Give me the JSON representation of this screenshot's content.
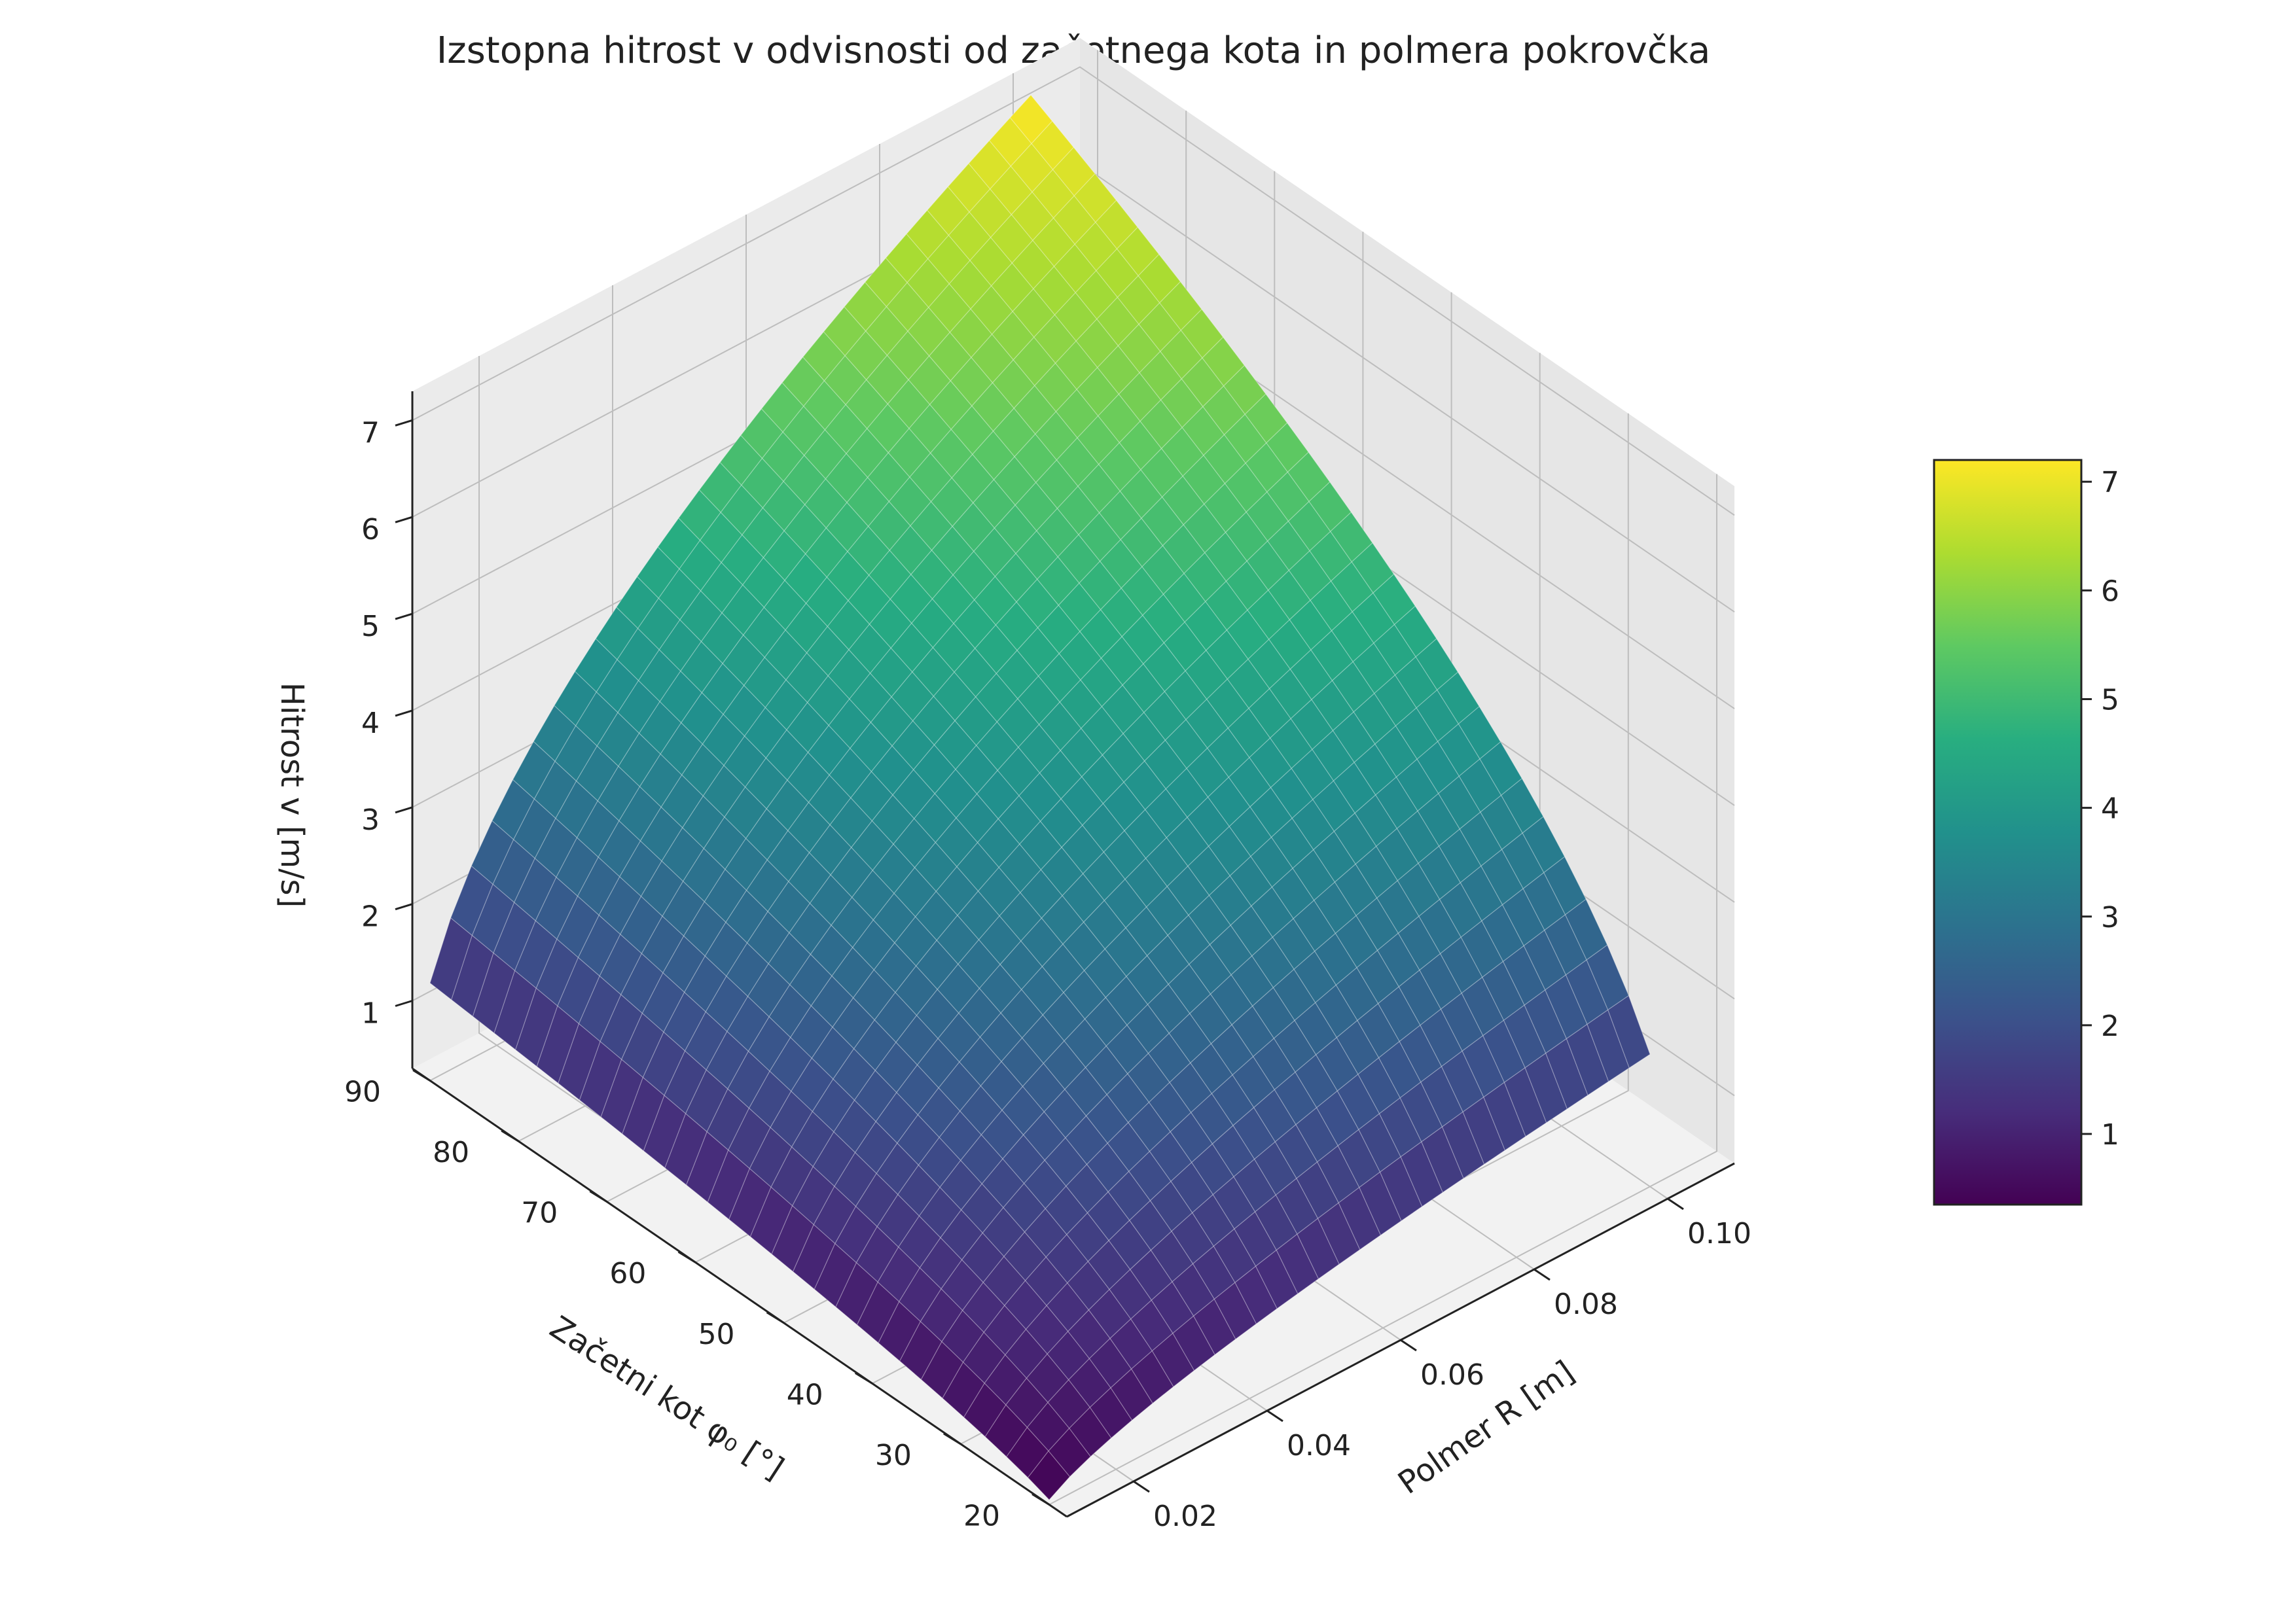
{
  "chart_data": {
    "type": "surface3d",
    "title": "Izstopna hitrost v odvisnosti od začetnega kota in polmera pokrovčka",
    "xlabel": "Polmer R [m]",
    "ylabel": "Začetni kot φ₀ [°]",
    "zlabel": "Hitrost v [m/s]",
    "x_ticks": [
      "0.02",
      "0.04",
      "0.06",
      "0.08",
      "0.10"
    ],
    "y_ticks": [
      "20",
      "30",
      "40",
      "50",
      "60",
      "70",
      "80",
      "90"
    ],
    "z_ticks": [
      "1",
      "2",
      "3",
      "4",
      "5",
      "6",
      "7"
    ],
    "x_values": [
      0.01,
      0.1
    ],
    "y_values": [
      20,
      90
    ],
    "xlim": [
      0.01,
      0.11
    ],
    "ylim": [
      18,
      92
    ],
    "zlim": [
      0.3,
      7.3
    ],
    "z_range": [
      0.35,
      7.2
    ],
    "colormap": "viridis",
    "grid": true,
    "colorbar": {
      "position": "right",
      "ticks": [
        "1",
        "2",
        "3",
        "4",
        "5",
        "6",
        "7"
      ],
      "range": [
        0.35,
        7.2
      ]
    }
  }
}
